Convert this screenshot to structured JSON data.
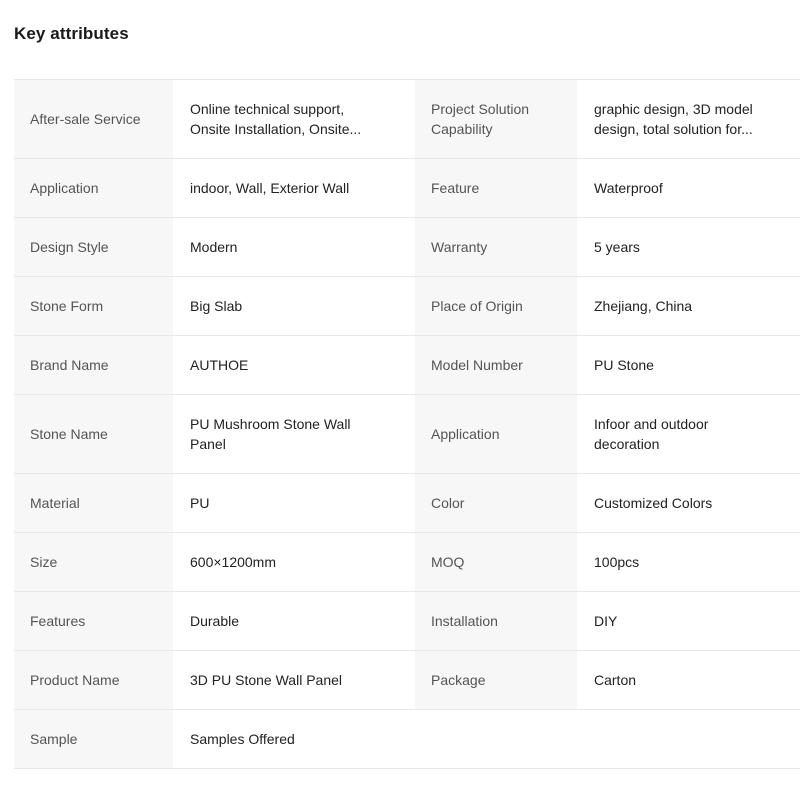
{
  "page": {
    "title": "Key attributes"
  },
  "colors": {
    "label_bg": "#f7f7f7",
    "border": "#e8e8e8",
    "label_text": "#545454",
    "value_text": "#222222"
  },
  "table": {
    "rows": [
      {
        "cells": [
          {
            "label": "After-sale Service",
            "value": "Online technical support, Onsite Installation, Onsite..."
          },
          {
            "label": "Project Solution Capability",
            "value": "graphic design, 3D model design, total solution for..."
          }
        ]
      },
      {
        "cells": [
          {
            "label": "Application",
            "value": "indoor, Wall, Exterior Wall"
          },
          {
            "label": "Feature",
            "value": "Waterproof"
          }
        ]
      },
      {
        "cells": [
          {
            "label": "Design Style",
            "value": "Modern"
          },
          {
            "label": "Warranty",
            "value": "5 years"
          }
        ]
      },
      {
        "cells": [
          {
            "label": "Stone Form",
            "value": "Big Slab"
          },
          {
            "label": "Place of Origin",
            "value": "Zhejiang, China"
          }
        ]
      },
      {
        "cells": [
          {
            "label": "Brand Name",
            "value": "AUTHOE"
          },
          {
            "label": "Model Number",
            "value": "PU Stone"
          }
        ]
      },
      {
        "cells": [
          {
            "label": "Stone Name",
            "value": "PU Mushroom Stone Wall Panel"
          },
          {
            "label": "Application",
            "value": "Infoor and outdoor decoration"
          }
        ]
      },
      {
        "cells": [
          {
            "label": "Material",
            "value": "PU"
          },
          {
            "label": "Color",
            "value": "Customized Colors"
          }
        ]
      },
      {
        "cells": [
          {
            "label": "Size",
            "value": "600×1200mm"
          },
          {
            "label": "MOQ",
            "value": "100pcs"
          }
        ]
      },
      {
        "cells": [
          {
            "label": "Features",
            "value": "Durable"
          },
          {
            "label": "Installation",
            "value": "DIY"
          }
        ]
      },
      {
        "cells": [
          {
            "label": "Product Name",
            "value": "3D PU Stone Wall Panel"
          },
          {
            "label": "Package",
            "value": "Carton"
          }
        ]
      },
      {
        "cells": [
          {
            "label": "Sample",
            "value": "Samples Offered"
          }
        ]
      }
    ]
  }
}
